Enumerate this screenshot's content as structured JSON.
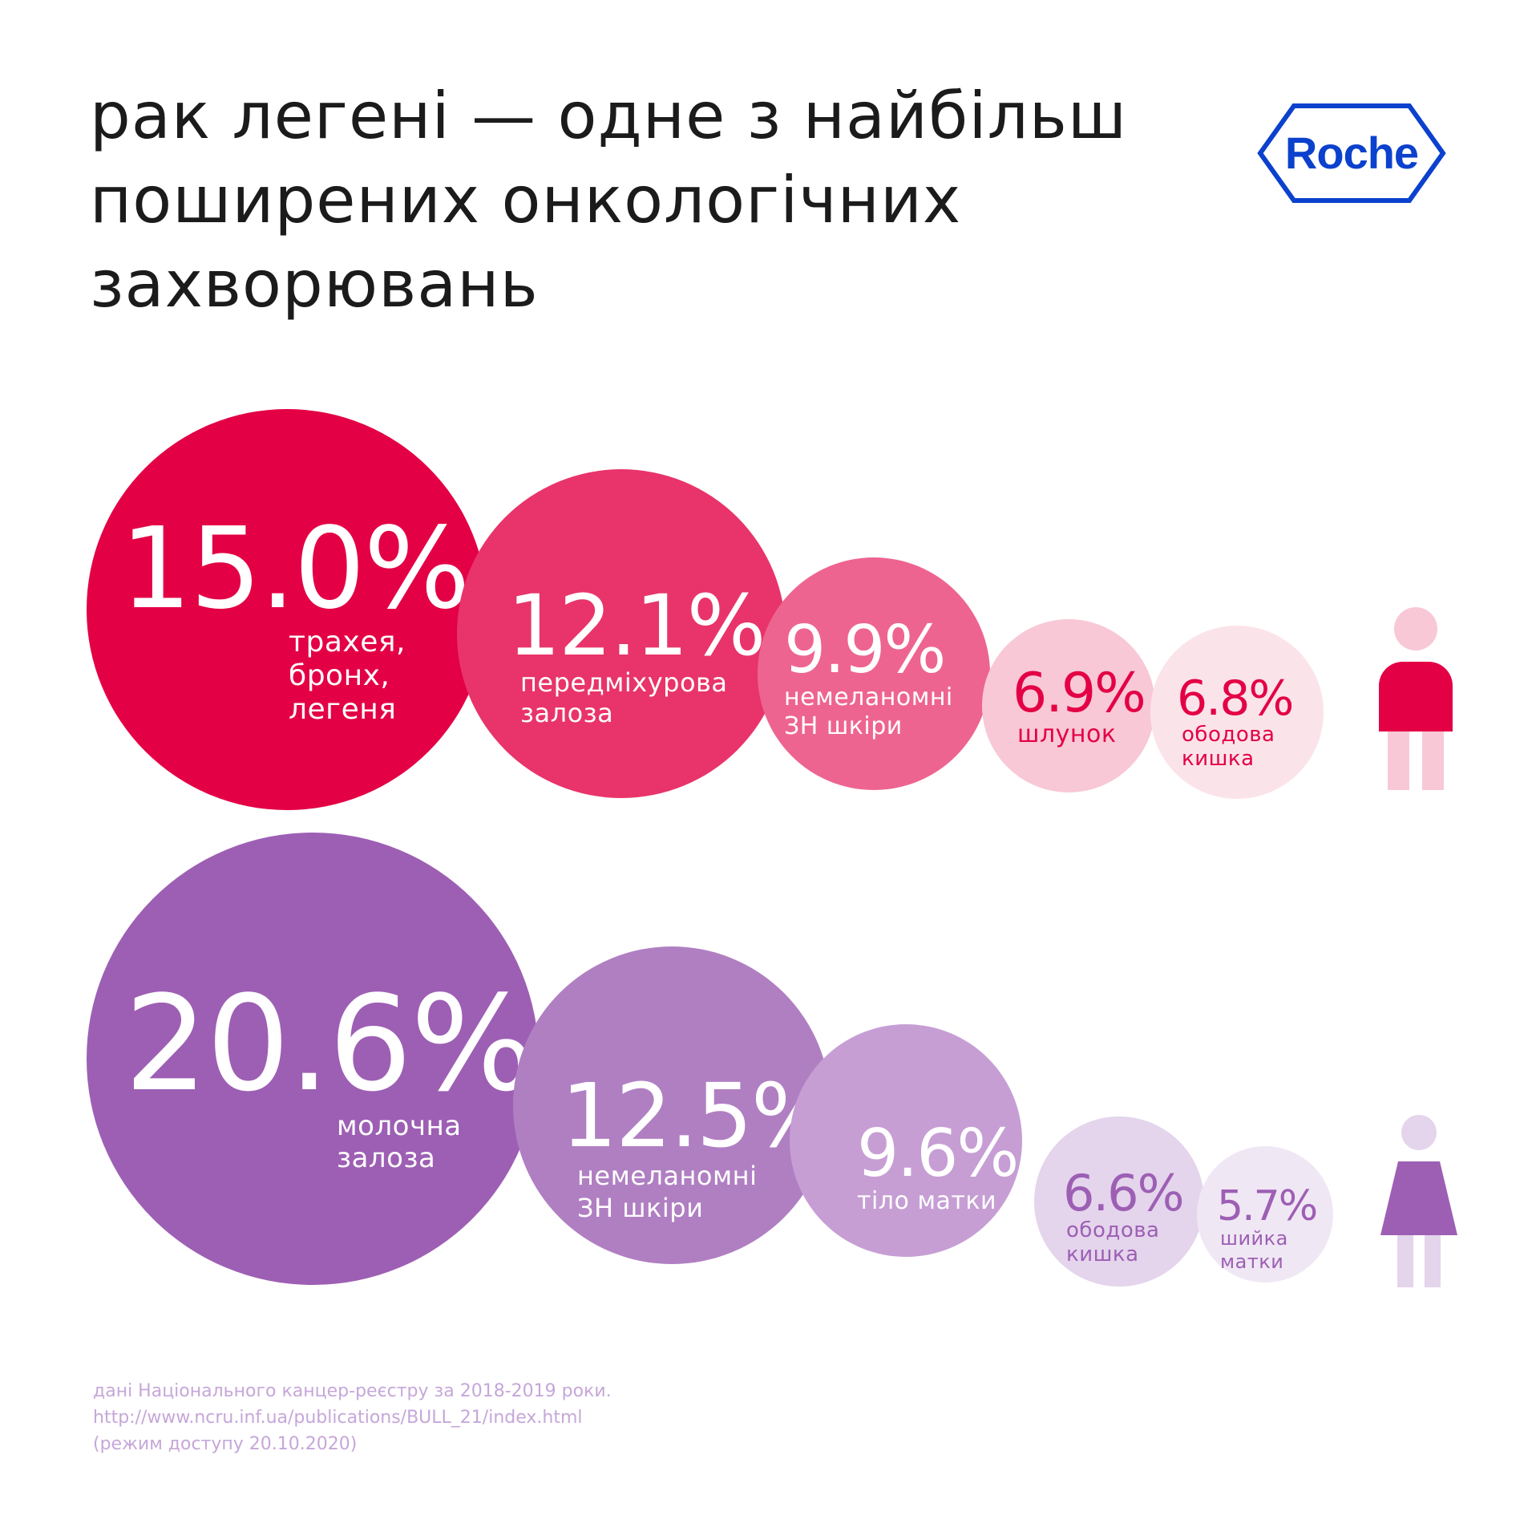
{
  "title_lines": [
    "рак легені — одне з найбільш",
    "поширених онкологічних",
    "захворювань"
  ],
  "logo": {
    "text": "Roche",
    "color": "#0b41cd",
    "icon": "roche-hexagon-logo"
  },
  "colors": {
    "men": [
      "#e30045",
      "#e8346a",
      "#ee6490",
      "#f8c8d6",
      "#fbe3ea"
    ],
    "women": [
      "#9d5fb4",
      "#b07fc2",
      "#c69ed4",
      "#e4d4ec",
      "#f0e7f4"
    ],
    "men_figure": {
      "head": "#f8c8d6",
      "body": "#e30045",
      "legs": "#f8c8d6"
    },
    "women_figure": {
      "head": "#e4d4ec",
      "body": "#9d5fb4",
      "legs": "#e4d4ec"
    }
  },
  "chart_data": [
    {
      "type": "bubble",
      "group_icon": "male-figure-icon",
      "unit": "%",
      "categories": [
        "трахея, бронх, легеня",
        "передміхурова залоза",
        "немеланомні ЗН шкіри",
        "шлунок",
        "ободова кишка"
      ],
      "values": [
        15.0,
        12.1,
        9.9,
        6.9,
        6.8
      ],
      "value_labels": [
        "15.0%",
        "12.1%",
        "9.9%",
        "6.9%",
        "6.8%"
      ],
      "labels": [
        "трахея,\nбронх,\nлегеня",
        "передміхурова\nзалоза",
        "немеланомні\nЗН шкіри",
        "шлунок",
        "ободова\nкишка"
      ]
    },
    {
      "type": "bubble",
      "group_icon": "female-figure-icon",
      "unit": "%",
      "categories": [
        "молочна залоза",
        "немеланомні ЗН шкіри",
        "тіло матки",
        "ободова кишка",
        "шийка матки"
      ],
      "values": [
        20.6,
        12.5,
        9.6,
        6.6,
        5.7
      ],
      "value_labels": [
        "20.6%",
        "12.5%",
        "9.6%",
        "6.6%",
        "5.7%"
      ],
      "labels": [
        "молочна\nзалоза",
        "немеланомні\nЗН шкіри",
        "тіло матки",
        "ободова\nкишка",
        "шийка\nматки"
      ]
    }
  ],
  "source_lines": [
    "дані Національного канцер-реєстру за 2018-2019 роки.",
    "http://www.ncru.inf.ua/publications/BULL_21/index.html",
    "(режим доступу 20.10.2020)"
  ]
}
